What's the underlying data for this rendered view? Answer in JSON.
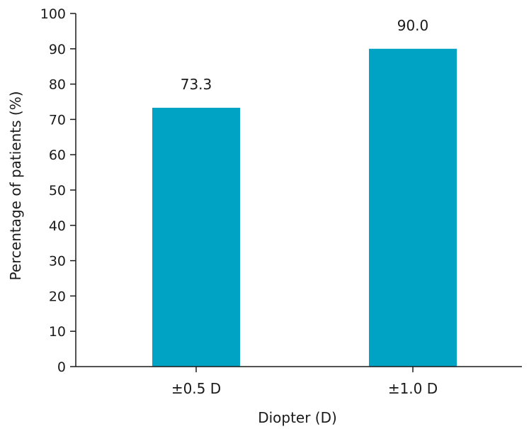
{
  "chart_data": {
    "type": "bar",
    "categories": [
      "±0.5 D",
      "±1.0 D"
    ],
    "values": [
      73.3,
      90.0
    ],
    "data_labels": [
      "73.3",
      "90.0"
    ],
    "title": "",
    "xlabel": "Diopter (D)",
    "ylabel": "Percentage of patients (%)",
    "ylim": [
      0,
      100
    ],
    "yticks": [
      0,
      10,
      20,
      30,
      40,
      50,
      60,
      70,
      80,
      90,
      100
    ],
    "ytick_labels": [
      "0",
      "10",
      "20",
      "30",
      "40",
      "50",
      "60",
      "70",
      "80",
      "90",
      "100"
    ],
    "grid": false,
    "legend": "none",
    "bar_color": "#00a3c4",
    "axis_color": "#1a1a1a"
  }
}
